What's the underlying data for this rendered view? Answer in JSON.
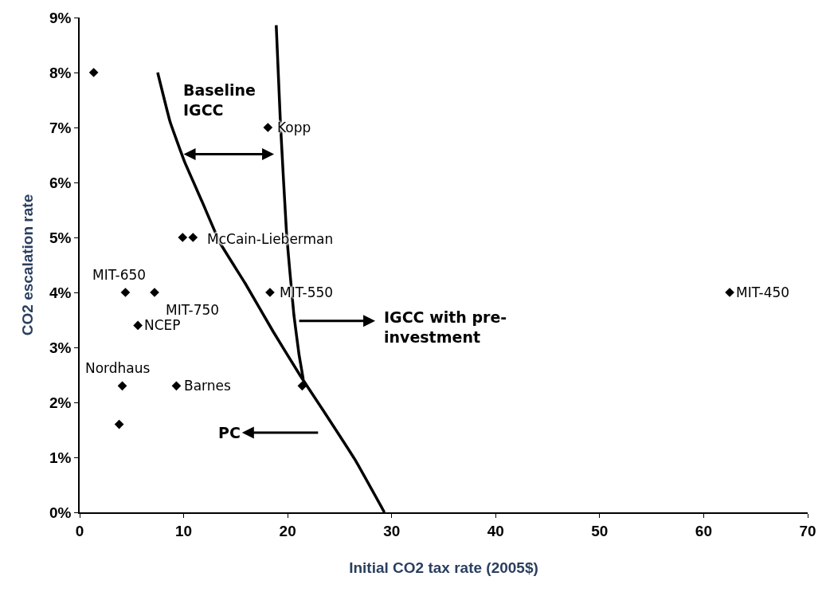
{
  "chart_data": {
    "type": "scatter",
    "xlabel": "Initial CO2 tax rate (2005$)",
    "ylabel": "CO2 escalation rate",
    "xlim": [
      0,
      70
    ],
    "xticks": [
      0,
      10,
      20,
      30,
      40,
      50,
      60,
      70
    ],
    "ylim": [
      0,
      9
    ],
    "yticks": [
      {
        "value": 0,
        "label": "0%"
      },
      {
        "value": 1,
        "label": "1%"
      },
      {
        "value": 2,
        "label": "2%"
      },
      {
        "value": 3,
        "label": "3%"
      },
      {
        "value": 4,
        "label": "4%"
      },
      {
        "value": 5,
        "label": "5%"
      },
      {
        "value": 6,
        "label": "6%"
      },
      {
        "value": 7,
        "label": "7%"
      },
      {
        "value": 8,
        "label": "8%"
      },
      {
        "value": 9,
        "label": "9%"
      }
    ],
    "series": [
      {
        "marker": "diamond",
        "color": "#000000",
        "x": [
          1.35,
          18.1,
          9.9,
          10.9,
          4.4,
          7.2,
          18.3,
          62.5,
          5.6,
          4.1,
          9.3,
          21.4,
          3.8
        ],
        "values": [
          8.0,
          7.0,
          5.0,
          5.0,
          4.0,
          4.0,
          4.0,
          4.0,
          3.4,
          2.3,
          2.3,
          2.3,
          1.6
        ]
      },
      {
        "type": "line",
        "marker": "none",
        "color": "#000000",
        "x": [
          7.5,
          8.7,
          10.1,
          11.8,
          13.5,
          15.9,
          18.6,
          21.2,
          23.5,
          26.5,
          29.3
        ],
        "values": [
          8.0,
          7.1,
          6.37,
          5.64,
          4.9,
          4.17,
          3.29,
          2.49,
          1.83,
          0.95,
          0
        ]
      },
      {
        "type": "line",
        "marker": "none",
        "color": "#000000",
        "x": [
          18.9,
          19.3,
          19.9,
          20.6,
          21.1,
          21.5
        ],
        "values": [
          8.86,
          7.1,
          5.05,
          3.59,
          2.86,
          2.42
        ]
      }
    ],
    "annotations": [
      {
        "text": "Kopp",
        "x": 18.1,
        "y": 7.0
      },
      {
        "text": "McCain-Lieberman",
        "x": 10.9,
        "y": 5.0
      },
      {
        "text": "MIT-650",
        "x": 4.4,
        "y": 4.0
      },
      {
        "text": "MIT-750",
        "x": 7.2,
        "y": 4.0
      },
      {
        "text": "MIT-550",
        "x": 18.3,
        "y": 4.0
      },
      {
        "text": "MIT-450",
        "x": 62.5,
        "y": 4.0
      },
      {
        "text": "NCEP",
        "x": 5.6,
        "y": 3.4
      },
      {
        "text": "Nordhaus",
        "x": 4.1,
        "y": 2.3
      },
      {
        "text": "Barnes",
        "x": 9.3,
        "y": 2.3
      },
      "Baseline\nIGCC",
      "IGCC with pre-\ninvestment",
      "PC"
    ]
  }
}
